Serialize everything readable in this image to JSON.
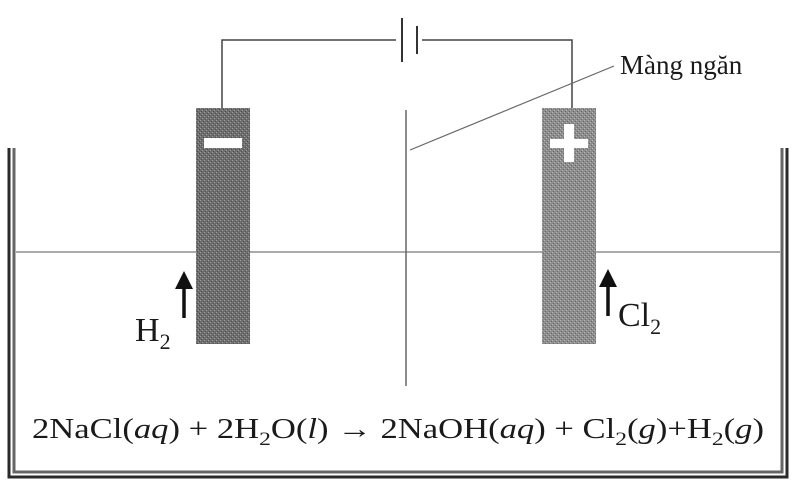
{
  "diagram": {
    "membrane_label": "Màng ngăn",
    "cathode": {
      "sign": "−",
      "gas": {
        "symbol": "H",
        "subscript": "2"
      }
    },
    "anode": {
      "sign": "+",
      "gas": {
        "symbol": "Cl",
        "subscript": "2"
      }
    },
    "equation": {
      "p1": "2NaCl(",
      "i1": "aq",
      "p2": ") + 2H",
      "s1": "2",
      "p3": "O(",
      "i2": "l",
      "p4": ") → 2NaOH(",
      "i3": "aq",
      "p5": ") + Cl",
      "s2": "2",
      "p6": "(",
      "i4": "g",
      "p7": ")+H",
      "s3": "2",
      "p8": "(",
      "i5": "g",
      "p9": ")"
    }
  }
}
